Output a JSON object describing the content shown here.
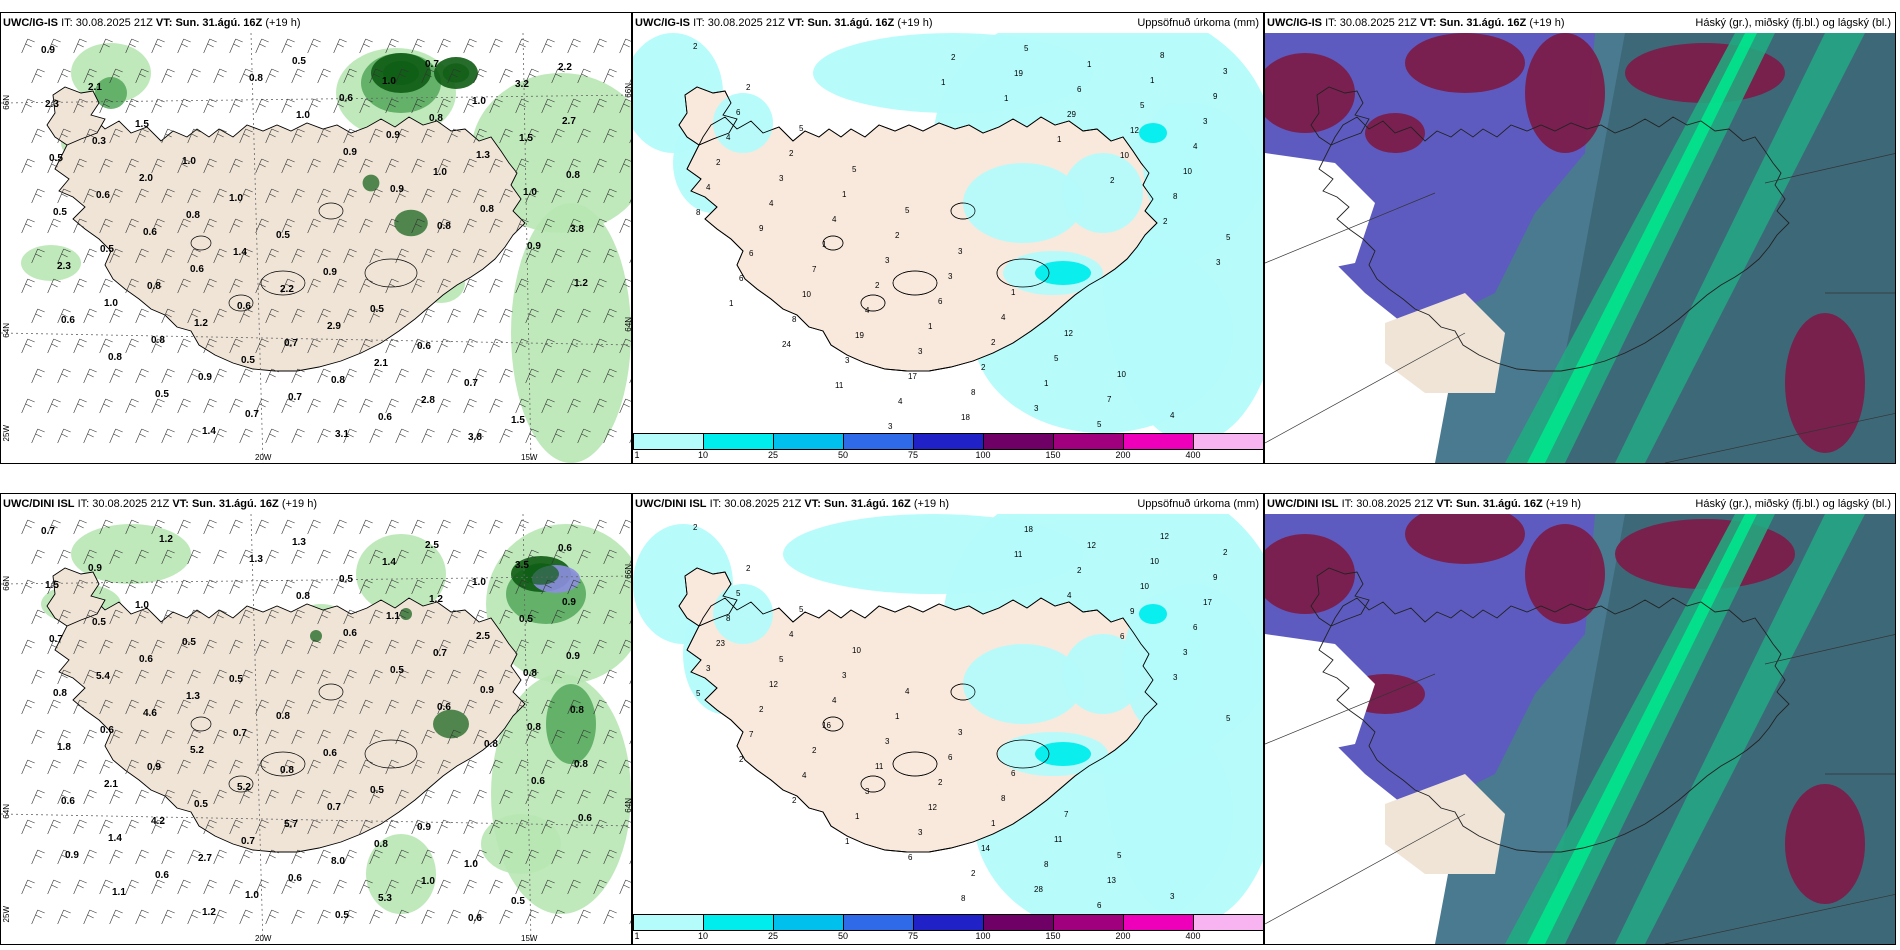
{
  "panels": [
    {
      "model": "UWC/IG-IS",
      "it_label": "IT:",
      "it": "30.08.2025 21Z",
      "vt_label": "VT:",
      "vt": "Sun. 31.ágú. 16Z",
      "lead": "(+19 h)",
      "title": ""
    },
    {
      "model": "UWC/IG-IS",
      "it_label": "IT:",
      "it": "30.08.2025 21Z",
      "vt_label": "VT:",
      "vt": "Sun. 31.ágú. 16Z",
      "lead": "(+19 h)",
      "title": "Uppsöfnuð úrkoma (mm)"
    },
    {
      "model": "UWC/IG-IS",
      "it_label": "IT:",
      "it": "30.08.2025 21Z",
      "vt_label": "VT:",
      "vt": "Sun. 31.ágú. 16Z",
      "lead": "(+19 h)",
      "title": "Háský (gr.), miðský (fj.bl.) og lágský (bl.)"
    },
    {
      "model": "UWC/DINI ISL",
      "it_label": "IT:",
      "it": "30.08.2025 21Z",
      "vt_label": "VT:",
      "vt": "Sun. 31.ágú. 16Z",
      "lead": "(+19 h)",
      "title": ""
    },
    {
      "model": "UWC/DINI ISL",
      "it_label": "IT:",
      "it": "30.08.2025 21Z",
      "vt_label": "VT:",
      "vt": "Sun. 31.ágú. 16Z",
      "lead": "(+19 h)",
      "title": "Uppsöfnuð úrkoma (mm)"
    },
    {
      "model": "UWC/DINI ISL",
      "it_label": "IT:",
      "it": "30.08.2025 21Z",
      "vt_label": "VT:",
      "vt": "Sun. 31.ágú. 16Z",
      "lead": "(+19 h)",
      "title": "Háský (gr.), miðský (fj.bl.) og lágský (bl.)"
    }
  ],
  "axis_labels": {
    "lat_66": "66N",
    "lat_64": "64N",
    "lon_25": "25W",
    "lon_20": "20W",
    "lon_15": "15W"
  },
  "legend": {
    "ticks": [
      "1",
      "10",
      "25",
      "50",
      "75",
      "100",
      "150",
      "200",
      "400"
    ],
    "colors": [
      "#b4fbfb",
      "#00eded",
      "#00c0ee",
      "#2f6ae8",
      "#2121c8",
      "#6e0066",
      "#a0007d",
      "#ee00bb",
      "#f8b4f0"
    ]
  },
  "wind_values": {
    "top": [
      "0.9",
      "2.1",
      "1.5",
      "1.0",
      "1.0",
      "0.5",
      "0.9",
      "0.5",
      "0.6",
      "0.7",
      "1.5",
      "2.2",
      "2.3",
      "0.3",
      "2.0",
      "0.8",
      "1.4",
      "2.2",
      "2.9",
      "2.1",
      "2.8",
      "3.8",
      "3.2",
      "2.7",
      "0.5",
      "0.6",
      "0.6",
      "0.6",
      "0.6",
      "0.7",
      "0.8",
      "0.6",
      "0.7",
      "1.0",
      "1.5",
      "0.8",
      "0.5",
      "0.5",
      "0.8",
      "1.2",
      "0.5",
      "0.7",
      "3.1",
      "1.0",
      "0.8",
      "1.3",
      "1.0",
      "3.8",
      "2.3",
      "1.0",
      "0.8",
      "0.9",
      "0.7",
      "0.5",
      "0.6",
      "0.9",
      "1.0",
      "0.8",
      "0.9",
      "1.2",
      "0.6",
      "0.8",
      "0.5",
      "1.4",
      "0.8",
      "1.0",
      "0.9",
      "0.9",
      "0.8"
    ],
    "bottom": [
      "0.7",
      "0.9",
      "1.0",
      "0.5",
      "0.5",
      "0.8",
      "0.6",
      "0.5",
      "0.9",
      "1.0",
      "0.5",
      "0.6",
      "1.5",
      "0.5",
      "0.6",
      "1.3",
      "0.7",
      "0.8",
      "0.7",
      "0.8",
      "1.0",
      "0.6",
      "3.5",
      "0.9",
      "0.7",
      "5.4",
      "4.6",
      "5.2",
      "5.2",
      "5.7",
      "8.0",
      "5.3",
      "2.5",
      "1.0",
      "0.5",
      "0.9",
      "0.8",
      "0.6",
      "0.9",
      "0.5",
      "0.7",
      "0.6",
      "0.5",
      "1.4",
      "1.2",
      "2.5",
      "0.8",
      "0.8",
      "1.8",
      "2.1",
      "4.2",
      "2.7",
      "1.0",
      "1.3",
      "0.5",
      "1.1",
      "0.7",
      "0.9",
      "0.8",
      "0.8",
      "0.6",
      "1.4",
      "0.6",
      "1.2",
      "1.3",
      "0.8",
      "0.6",
      "0.5",
      "0.6",
      "0.8",
      "0.6",
      "0.6",
      "0.9",
      "1.1",
      "1.2"
    ]
  },
  "precip_values": {
    "top": [
      "2",
      "2",
      "5",
      "5",
      "5",
      "3",
      "1",
      "12",
      "10",
      "4",
      "3",
      "6",
      "2",
      "1",
      "2",
      "3",
      "4",
      "5",
      "7",
      "8",
      "9",
      "4",
      "3",
      "4",
      "3",
      "6",
      "2",
      "1",
      "5",
      "1",
      "3",
      "2",
      "4",
      "1",
      "2",
      "1",
      "2",
      "3",
      "1",
      "5",
      "4",
      "4",
      "9",
      "7",
      "4",
      "3",
      "8",
      "5",
      "6",
      "12",
      "10",
      "8",
      "6",
      "10",
      "19",
      "17",
      "18",
      "19",
      "29",
      "10",
      "8",
      "5",
      "6",
      "8",
      "3",
      "4",
      "2",
      "1",
      "1",
      "2",
      "2",
      "3",
      "1",
      "24",
      "11",
      "3",
      "1"
    ],
    "bottom": [
      "2",
      "2",
      "5",
      "10",
      "4",
      "3",
      "6",
      "7",
      "5",
      "3",
      "2",
      "5",
      "4",
      "3",
      "1",
      "6",
      "8",
      "11",
      "13",
      "12",
      "9",
      "8",
      "5",
      "4",
      "3",
      "2",
      "1",
      "8",
      "6",
      "10",
      "17",
      "23",
      "12",
      "16",
      "11",
      "12",
      "14",
      "28",
      "12",
      "10",
      "6",
      "3",
      "2",
      "2",
      "3",
      "3",
      "2",
      "18",
      "2",
      "9",
      "3",
      "5",
      "7",
      "4",
      "1",
      "6",
      "8",
      "11",
      "4",
      "6",
      "3",
      "5",
      "2",
      "2",
      "1"
    ]
  },
  "icons": {
    "wind_barb": "wind-barb-icon",
    "coast": "coastline"
  }
}
